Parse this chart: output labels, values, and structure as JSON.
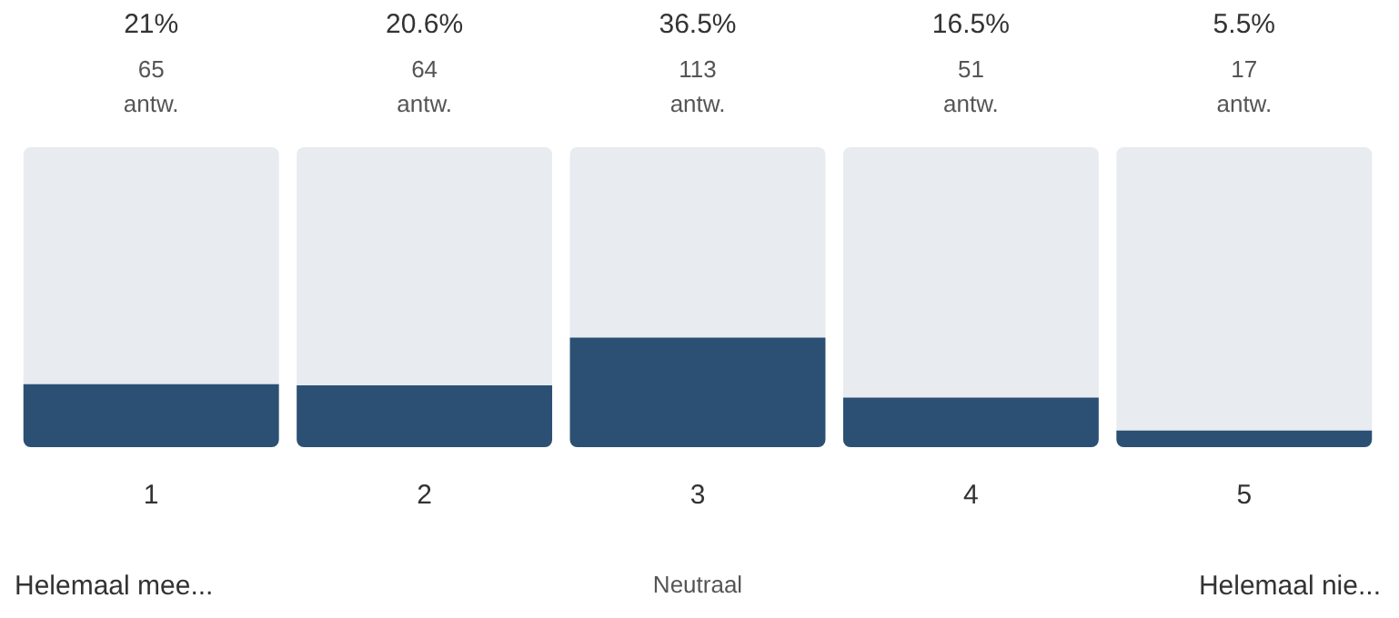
{
  "chart_data": {
    "type": "bar",
    "categories": [
      "1",
      "2",
      "3",
      "4",
      "5"
    ],
    "values": [
      21,
      20.6,
      36.5,
      16.5,
      5.5
    ],
    "value_labels": [
      "21%",
      "20.6%",
      "36.5%",
      "16.5%",
      "5.5%"
    ],
    "color": "#2b5074",
    "ylim": [
      0,
      100
    ],
    "tick_labels": "x",
    "grid": false,
    "legend": false,
    "annotations": [
      "65 antw.",
      "64 antw.",
      "113 antw.",
      "51 antw.",
      "17 antw.",
      "Helemaal mee...",
      "Neutraal",
      "Helemaal nie..."
    ]
  }
}
